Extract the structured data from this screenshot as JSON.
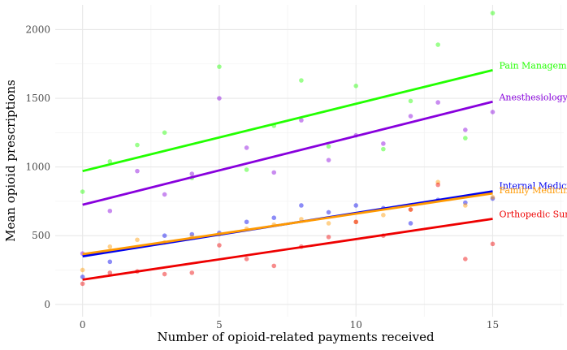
{
  "chart_data": {
    "type": "scatter",
    "title": "",
    "xlabel": "Number of opioid-related payments received",
    "ylabel": "Mean opioid prescriptions",
    "xlim": [
      -1,
      17.6
    ],
    "ylim": [
      -90,
      2180
    ],
    "x_ticks": [
      0,
      5,
      10,
      15
    ],
    "y_ticks": [
      0,
      500,
      1000,
      1500,
      2000
    ],
    "grid": true,
    "legend": "direct labels at right end of each fit line",
    "series": [
      {
        "name": "Pain Management",
        "color": "#22ff00",
        "fit": {
          "intercept": 970,
          "slope": 49
        },
        "points": [
          [
            0,
            820
          ],
          [
            1,
            1040
          ],
          [
            2,
            1160
          ],
          [
            3,
            1250
          ],
          [
            4,
            920
          ],
          [
            5,
            1730
          ],
          [
            6,
            980
          ],
          [
            7,
            1300
          ],
          [
            8,
            1630
          ],
          [
            9,
            1150
          ],
          [
            10,
            1590
          ],
          [
            11,
            1130
          ],
          [
            12,
            1480
          ],
          [
            13,
            1890
          ],
          [
            14,
            1210
          ],
          [
            15,
            2120
          ]
        ]
      },
      {
        "name": "Anesthesiology",
        "color": "#8800dd",
        "fit": {
          "intercept": 725,
          "slope": 50
        },
        "points": [
          [
            0,
            370
          ],
          [
            1,
            680
          ],
          [
            2,
            970
          ],
          [
            3,
            800
          ],
          [
            4,
            950
          ],
          [
            5,
            1500
          ],
          [
            6,
            1140
          ],
          [
            7,
            960
          ],
          [
            8,
            1340
          ],
          [
            9,
            1050
          ],
          [
            10,
            1230
          ],
          [
            11,
            1170
          ],
          [
            12,
            1370
          ],
          [
            13,
            1470
          ],
          [
            14,
            1270
          ],
          [
            15,
            1400
          ]
        ]
      },
      {
        "name": "Internal Medicine",
        "color": "#0000ee",
        "fit": {
          "intercept": 350,
          "slope": 31.5
        },
        "points": [
          [
            0,
            200
          ],
          [
            1,
            310
          ],
          [
            3,
            500
          ],
          [
            4,
            510
          ],
          [
            5,
            520
          ],
          [
            6,
            600
          ],
          [
            7,
            630
          ],
          [
            8,
            720
          ],
          [
            9,
            670
          ],
          [
            10,
            720
          ],
          [
            11,
            700
          ],
          [
            12,
            590
          ],
          [
            13,
            760
          ],
          [
            14,
            740
          ],
          [
            15,
            770
          ]
        ]
      },
      {
        "name": "Family Medicine",
        "color": "#ff9900",
        "fit": {
          "intercept": 365,
          "slope": 29.5
        },
        "points": [
          [
            0,
            250
          ],
          [
            1,
            420
          ],
          [
            2,
            470
          ],
          [
            3,
            450
          ],
          [
            4,
            490
          ],
          [
            5,
            510
          ],
          [
            6,
            550
          ],
          [
            7,
            580
          ],
          [
            8,
            620
          ],
          [
            9,
            590
          ],
          [
            10,
            600
          ],
          [
            11,
            650
          ],
          [
            12,
            690
          ],
          [
            13,
            890
          ],
          [
            14,
            720
          ],
          [
            15,
            780
          ]
        ]
      },
      {
        "name": "Orthopedic Surgery",
        "color": "#ee0000",
        "fit": {
          "intercept": 180,
          "slope": 29.5
        },
        "points": [
          [
            0,
            150
          ],
          [
            1,
            230
          ],
          [
            2,
            240
          ],
          [
            3,
            220
          ],
          [
            4,
            230
          ],
          [
            5,
            430
          ],
          [
            6,
            330
          ],
          [
            7,
            280
          ],
          [
            8,
            420
          ],
          [
            9,
            490
          ],
          [
            10,
            600
          ],
          [
            11,
            500
          ],
          [
            12,
            690
          ],
          [
            13,
            870
          ],
          [
            14,
            330
          ],
          [
            15,
            440
          ]
        ]
      }
    ]
  }
}
